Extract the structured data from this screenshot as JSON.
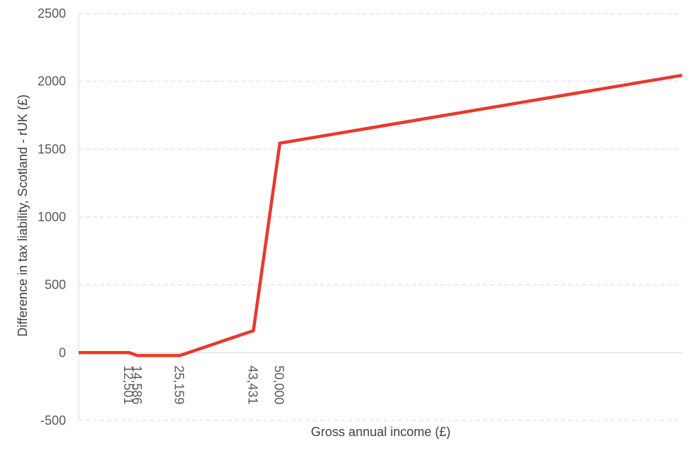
{
  "chart_data": {
    "type": "line",
    "title": "",
    "xlabel": "Gross annual income (£)",
    "ylabel": "Difference in tax liability, Scotland - rUK (£)",
    "xlim": [
      0,
      150000
    ],
    "ylim": [
      -500,
      2500
    ],
    "yticks": [
      -500,
      0,
      500,
      1000,
      1500,
      2000,
      2500
    ],
    "xticks": [
      {
        "value": 12501,
        "label": "12,501"
      },
      {
        "value": 14586,
        "label": "14,586"
      },
      {
        "value": 25159,
        "label": "25,159"
      },
      {
        "value": 43431,
        "label": "43,431"
      },
      {
        "value": 50000,
        "label": "50,000"
      }
    ],
    "grid": "horizontal dashed",
    "legend": "none",
    "series": [
      {
        "color": "#E8392F",
        "points": [
          [
            0,
            0
          ],
          [
            12501,
            0
          ],
          [
            14586,
            -21
          ],
          [
            25159,
            -21
          ],
          [
            43431,
            162
          ],
          [
            50000,
            1544
          ],
          [
            150000,
            2044
          ]
        ]
      }
    ]
  }
}
